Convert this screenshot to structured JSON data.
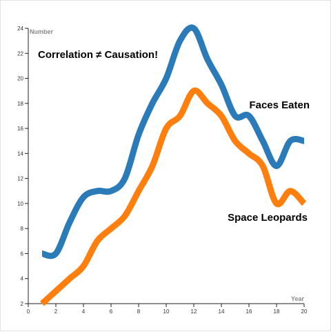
{
  "chart_data": {
    "type": "line",
    "xlabel": "Year",
    "ylabel": "Number",
    "xlim": [
      0,
      20
    ],
    "ylim": [
      2,
      24
    ],
    "x_ticks": [
      0,
      2,
      4,
      6,
      8,
      10,
      12,
      14,
      16,
      18,
      20
    ],
    "y_ticks": [
      2,
      4,
      6,
      8,
      10,
      12,
      14,
      16,
      18,
      20,
      22,
      24
    ],
    "grid": false,
    "annotations": [
      {
        "text": "Correlation ≠ Causation!"
      }
    ],
    "x": [
      1,
      2,
      3,
      4,
      5,
      6,
      7,
      8,
      9,
      10,
      11,
      12,
      13,
      14,
      15,
      16,
      17,
      18,
      19,
      20
    ],
    "series": [
      {
        "name": "Faces Eaten",
        "color": "#2b7bb9",
        "values": [
          6,
          6,
          8.5,
          10.5,
          11,
          11,
          12,
          15.5,
          18,
          20,
          23,
          24,
          21.5,
          19.5,
          17,
          17,
          15,
          13,
          15,
          15
        ]
      },
      {
        "name": "Space Leopards",
        "color": "#ff7f0e",
        "values": [
          2,
          3,
          4,
          5,
          7,
          8,
          9,
          11,
          13,
          16,
          17,
          19,
          18,
          17,
          15,
          14,
          13,
          10,
          11,
          10
        ]
      }
    ]
  }
}
